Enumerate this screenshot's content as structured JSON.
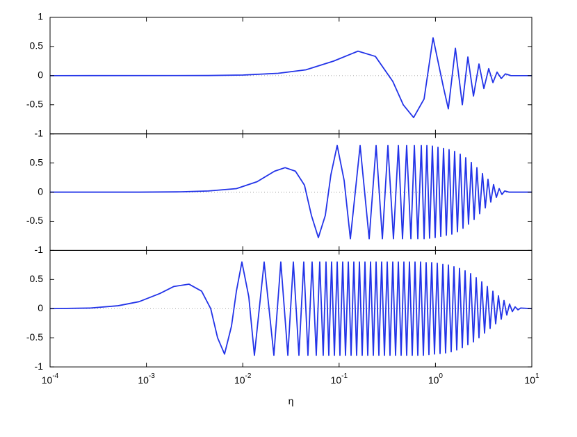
{
  "chart_data": [
    {
      "type": "line",
      "xscale": "log",
      "xlim": [
        0.0001,
        10
      ],
      "ylim": [
        -1,
        1
      ],
      "xticks": [
        0.0001,
        0.001,
        0.01,
        0.1,
        1,
        10
      ],
      "yticks": [
        -1,
        -0.5,
        0,
        0.5,
        1
      ],
      "hline": 0,
      "x": [
        0.0001,
        0.0044,
        0.0101,
        0.0233,
        0.0452,
        0.0879,
        0.157,
        0.238,
        0.361,
        0.463,
        0.593,
        0.762,
        0.944,
        1.21,
        1.36,
        1.61,
        1.9,
        2.17,
        2.48,
        2.83,
        3.18,
        3.57,
        3.95,
        4.36,
        4.82,
        5.32,
        6.08,
        10
      ],
      "series": [
        {
          "color": "#2233e8",
          "values": [
            0,
            0.002,
            0.01,
            0.04,
            0.1,
            0.25,
            0.42,
            0.33,
            -0.1,
            -0.5,
            -0.72,
            -0.4,
            0.65,
            -0.2,
            -0.57,
            0.47,
            -0.5,
            0.32,
            -0.35,
            0.2,
            -0.22,
            0.12,
            -0.12,
            0.06,
            -0.05,
            0.03,
            0,
            0
          ]
        }
      ]
    },
    {
      "type": "line",
      "xscale": "log",
      "xlim": [
        0.0001,
        10
      ],
      "ylim": [
        -1,
        1
      ],
      "xticks": [
        0.0001,
        0.001,
        0.01,
        0.1,
        1,
        10
      ],
      "yticks": [
        -1,
        -0.5,
        0,
        0.5
      ],
      "hline": 0,
      "x": [
        0.0001,
        0.00084,
        0.00227,
        0.0044,
        0.00859,
        0.0141,
        0.0214,
        0.0275,
        0.0352,
        0.0437,
        0.0516,
        0.0609,
        0.0719,
        0.0822,
        0.0955,
        0.1128,
        0.1309,
        0.1652,
        0.2051,
        0.2421,
        0.2812,
        0.321,
        0.3664,
        0.4121,
        0.455,
        0.5024,
        0.5559,
        0.6039,
        0.6561,
        0.7129,
        0.7621,
        0.8147,
        0.869,
        0.9291,
        0.9931,
        1.062,
        1.135,
        1.213,
        1.297,
        1.384,
        1.479,
        1.581,
        1.69,
        1.807,
        1.932,
        2.061,
        2.203,
        2.355,
        2.518,
        2.692,
        2.877,
        3.076,
        3.289,
        3.508,
        3.75,
        4.009,
        4.286,
        4.581,
        4.898,
        5.236,
        5.781,
        10
      ],
      "series": [
        {
          "color": "#2233e8",
          "values": [
            0,
            0,
            0.005,
            0.02,
            0.06,
            0.18,
            0.36,
            0.42,
            0.36,
            0.12,
            -0.4,
            -0.78,
            -0.4,
            0.3,
            0.8,
            0.2,
            -0.8,
            0.8,
            -0.8,
            0.8,
            -0.8,
            0.8,
            -0.8,
            0.8,
            -0.8,
            0.8,
            -0.8,
            0.8,
            -0.8,
            0.8,
            -0.8,
            0.8,
            -0.79,
            0.79,
            -0.78,
            0.77,
            -0.76,
            0.75,
            -0.74,
            0.73,
            -0.72,
            0.7,
            -0.68,
            0.65,
            -0.62,
            0.59,
            -0.55,
            0.51,
            -0.47,
            0.42,
            -0.37,
            0.32,
            -0.27,
            0.22,
            -0.17,
            0.13,
            -0.09,
            0.06,
            -0.04,
            0.02,
            0,
            0
          ]
        }
      ]
    },
    {
      "type": "line",
      "xscale": "log",
      "xlim": [
        0.0001,
        10
      ],
      "ylim": [
        -1,
        1
      ],
      "xlabel": "η",
      "xticks": [
        {
          "value": 0.0001,
          "label": "10",
          "exponent": "-4"
        },
        {
          "value": 0.001,
          "label": "10",
          "exponent": "-3"
        },
        {
          "value": 0.01,
          "label": "10",
          "exponent": "-2"
        },
        {
          "value": 0.1,
          "label": "10",
          "exponent": "-1"
        },
        {
          "value": 1,
          "label": "10",
          "exponent": "0"
        },
        {
          "value": 10,
          "label": "10",
          "exponent": "1"
        }
      ],
      "yticks": [
        -1,
        -0.5,
        0,
        0.5
      ],
      "hline": 0,
      "x": [
        0.0001,
        0.000262,
        0.000509,
        0.00084,
        0.00138,
        0.00192,
        0.00277,
        0.00374,
        0.00465,
        0.00548,
        0.00647,
        0.00764,
        0.00859,
        0.0098,
        0.01156,
        0.01321,
        0.01667,
        0.02104,
        0.02483,
        0.02938,
        0.0335,
        0.03828,
        0.04297,
        0.04748,
        0.05245,
        0.05794,
        0.06295,
        0.06839,
        0.07311,
        0.07816,
        0.08356,
        0.08933,
        0.0955,
        0.102,
        0.109,
        0.1165,
        0.1246,
        0.1331,
        0.1422,
        0.152,
        0.1625,
        0.1736,
        0.1855,
        0.1983,
        0.2119,
        0.2265,
        0.242,
        0.2587,
        0.2764,
        0.2954,
        0.3157,
        0.3374,
        0.3606,
        0.3854,
        0.4118,
        0.4401,
        0.4703,
        0.5027,
        0.5372,
        0.5741,
        0.6135,
        0.6557,
        0.7007,
        0.7489,
        0.8003,
        0.8553,
        0.9141,
        0.977,
        1.044,
        1.116,
        1.193,
        1.274,
        1.362,
        1.456,
        1.556,
        1.663,
        1.777,
        1.899,
        2.03,
        2.169,
        2.318,
        2.477,
        2.648,
        2.829,
        3.024,
        3.232,
        3.453,
        3.691,
        3.945,
        4.216,
        4.505,
        4.814,
        5.145,
        5.499,
        5.875,
        6.281,
        6.712,
        7.174,
        7.667,
        10
      ],
      "series": [
        {
          "color": "#2233e8",
          "values": [
            0,
            0.01,
            0.05,
            0.12,
            0.26,
            0.38,
            0.42,
            0.3,
            0,
            -0.5,
            -0.78,
            -0.3,
            0.3,
            0.8,
            0.2,
            -0.8,
            0.8,
            -0.8,
            0.8,
            -0.8,
            0.8,
            -0.8,
            0.8,
            -0.8,
            0.8,
            -0.8,
            0.8,
            -0.8,
            0.8,
            -0.8,
            0.8,
            -0.8,
            0.8,
            -0.8,
            0.8,
            -0.8,
            0.8,
            -0.8,
            0.8,
            -0.8,
            0.8,
            -0.8,
            0.8,
            -0.8,
            0.8,
            -0.8,
            0.8,
            -0.8,
            0.8,
            -0.8,
            0.8,
            -0.8,
            0.8,
            -0.8,
            0.8,
            -0.8,
            0.8,
            -0.8,
            0.8,
            -0.8,
            0.8,
            -0.8,
            0.8,
            -0.8,
            0.79,
            -0.79,
            0.79,
            -0.78,
            0.78,
            -0.77,
            0.76,
            -0.76,
            0.75,
            -0.74,
            0.72,
            -0.71,
            0.69,
            -0.67,
            0.65,
            -0.62,
            0.6,
            -0.57,
            0.53,
            -0.5,
            0.46,
            -0.42,
            0.38,
            -0.34,
            0.3,
            -0.26,
            0.22,
            -0.18,
            0.14,
            -0.11,
            0.08,
            -0.05,
            0.03,
            -0.02,
            0.01,
            0
          ]
        }
      ]
    }
  ]
}
